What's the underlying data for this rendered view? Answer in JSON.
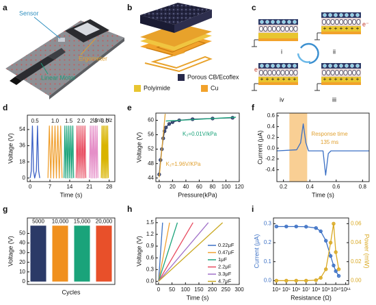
{
  "panel_labels": [
    "a",
    "b",
    "c",
    "d",
    "e",
    "f",
    "g",
    "h",
    "i"
  ],
  "panel_a": {
    "labels": [
      "Sensor",
      "Ergometer",
      "Linear Motor"
    ]
  },
  "panel_b": {
    "legend": [
      "Porous CB/Ecoflex",
      "Polyimide",
      "Cu"
    ]
  },
  "panel_c": {
    "states": [
      "i",
      "ii",
      "iii",
      "iv"
    ],
    "electron": "e⁻"
  },
  "chart_data": [
    {
      "type": "line",
      "xlabel": "Time (s)",
      "ylabel": "Voltage (V)",
      "legend": "above",
      "annotations": [
        {
          "text": "Unit: Hz",
          "color": "#222"
        }
      ],
      "xlim": [
        -1,
        30
      ],
      "ylim": [
        -4,
        70
      ],
      "xticks": [
        0,
        7,
        14,
        21,
        28
      ],
      "yticks": [
        0,
        18,
        36,
        54
      ],
      "series": [
        {
          "name": "0.5",
          "color": "#3a5fc4",
          "x": [
            0,
            0.4,
            0.8,
            1.2,
            1.6,
            2.2,
            2.6,
            3.0,
            3.4
          ],
          "values": [
            0,
            8,
            58,
            8,
            0,
            8,
            58,
            8,
            0
          ]
        },
        {
          "name": "1.0",
          "color": "#f0a030",
          "x": [
            6.3,
            6.8,
            7.3,
            7.8,
            8.3,
            8.8,
            9.3,
            9.8,
            10.3,
            10.8,
            11.3
          ],
          "values": [
            0,
            58,
            0,
            58,
            0,
            58,
            0,
            58,
            0,
            58,
            0
          ]
        },
        {
          "name": "1.5",
          "color": "#1aa37a",
          "x": [
            12,
            12.3,
            12.65,
            13,
            13.35,
            13.7,
            14.05,
            14.4,
            14.75,
            15.1,
            15.4
          ],
          "values": [
            0,
            58,
            0,
            58,
            0,
            58,
            0,
            58,
            0,
            58,
            0
          ]
        },
        {
          "name": "2.0",
          "color": "#e84a5f",
          "x": [
            16.3,
            16.6,
            16.95,
            17.3,
            17.65,
            18,
            18.35,
            18.7,
            19.05,
            19.4,
            19.7
          ],
          "values": [
            0,
            58,
            0,
            58,
            0,
            58,
            0,
            58,
            0,
            58,
            0
          ]
        },
        {
          "name": "2.5",
          "color": "#e58fc8",
          "x": [
            21,
            21.3,
            21.6,
            21.9,
            22.2,
            22.5,
            22.8,
            23.1,
            23.4,
            23.7,
            24
          ],
          "values": [
            0,
            58,
            0,
            58,
            0,
            58,
            0,
            58,
            0,
            58,
            0
          ]
        },
        {
          "name": "3.0",
          "color": "#d9b400",
          "x": [
            25.2,
            25.45,
            25.7,
            25.95,
            26.2,
            26.45,
            26.7,
            26.95,
            27.2,
            27.45,
            27.7
          ],
          "values": [
            0,
            58,
            0,
            58,
            0,
            58,
            0,
            58,
            0,
            58,
            0
          ]
        }
      ]
    },
    {
      "type": "line",
      "xlabel": "Pressure(kPa)",
      "ylabel": "Voltage (V)",
      "annotations": [
        {
          "text": "K₂=0.01V/kPa",
          "color": "#1aa37a"
        },
        {
          "text": "K₁=1.96V/KPa",
          "color": "#e0a030"
        }
      ],
      "xlim": [
        -5,
        120
      ],
      "ylim": [
        43,
        62
      ],
      "xticks": [
        0,
        20,
        40,
        60,
        80,
        100,
        120
      ],
      "yticks": [
        44,
        48,
        52,
        56,
        60
      ],
      "series": [
        {
          "color": "#2b3a67",
          "markers": true,
          "x": [
            0,
            2,
            4,
            6,
            8,
            10,
            15,
            20,
            30,
            50,
            80,
            110
          ],
          "values": [
            45,
            49,
            52,
            55,
            57,
            58,
            59,
            59.5,
            60,
            60.3,
            60.5,
            60.7
          ]
        },
        {
          "color": "#e0a030",
          "x": [
            0,
            9
          ],
          "values": [
            44.2,
            61.8
          ]
        },
        {
          "color": "#1aa37a",
          "x": [
            10,
            115
          ],
          "values": [
            59.8,
            60.85
          ]
        }
      ]
    },
    {
      "type": "line",
      "xlabel": "Time (s)",
      "ylabel": "Current (μA)",
      "annotations": [
        {
          "text": "Response time",
          "color": "#e0a030"
        },
        {
          "text": "135 ms",
          "color": "#e0a030"
        }
      ],
      "highlight": {
        "range": [
          0.245,
          0.38
        ],
        "color": "#f9cf94"
      },
      "xlim": [
        0.15,
        0.85
      ],
      "ylim": [
        -0.62,
        0.65
      ],
      "xticks": [
        0.2,
        0.4,
        0.6,
        0.8
      ],
      "yticks": [
        -0.4,
        -0.2,
        {
          "value": 0,
          "label": "0.0"
        },
        0.2,
        0.4,
        0.6
      ],
      "series": [
        {
          "color": "#3a6fc4",
          "x": [
            0.15,
            0.3,
            0.33,
            0.35,
            0.37,
            0.39,
            0.5,
            0.52,
            0.54,
            0.56,
            0.85
          ],
          "values": [
            -0.05,
            -0.03,
            0.1,
            0.45,
            0.1,
            -0.05,
            -0.05,
            -0.5,
            -0.1,
            -0.05,
            -0.05
          ]
        }
      ]
    },
    {
      "type": "bar",
      "xlabel": "Cycles",
      "ylabel": "Voltage (V)",
      "categories": [
        "5000",
        "10,000",
        "15,000",
        "20,000"
      ],
      "values": [
        58,
        58,
        58,
        58
      ],
      "colors": [
        "#2b3a67",
        "#f0901e",
        "#1aa37a",
        "#e8502a"
      ],
      "ylim": [
        -3,
        66
      ],
      "yticks": [
        0,
        10,
        20,
        30,
        40,
        50
      ]
    },
    {
      "type": "line",
      "xlabel": "Time (s)",
      "ylabel": "Voltage (V)",
      "legend": "right",
      "xlim": [
        -10,
        300
      ],
      "ylim": [
        -0.08,
        1.62
      ],
      "xticks": [
        0,
        50,
        100,
        150,
        200,
        250,
        300
      ],
      "yticks": [
        {
          "value": 0,
          "label": "0.0"
        },
        0.3,
        0.6,
        0.9,
        1.2,
        1.5
      ],
      "series": [
        {
          "name": "0.22μF",
          "color": "#3a6fc4",
          "x": [
            0,
            15
          ],
          "values": [
            0,
            1.5
          ]
        },
        {
          "name": "0.47μF",
          "color": "#f0a030",
          "x": [
            0,
            41
          ],
          "values": [
            0,
            1.5
          ]
        },
        {
          "name": "1μF",
          "color": "#1aa37a",
          "x": [
            0,
            70
          ],
          "values": [
            0,
            1.5
          ]
        },
        {
          "name": "2.2μF",
          "color": "#e84a5f",
          "x": [
            0,
            128
          ],
          "values": [
            0,
            1.5
          ]
        },
        {
          "name": "3.3μF",
          "color": "#a070c8",
          "x": [
            0,
            185
          ],
          "values": [
            0,
            1.5
          ]
        },
        {
          "name": "4.7μF",
          "color": "#c9a820",
          "x": [
            0,
            238
          ],
          "values": [
            0,
            1.5
          ]
        }
      ]
    },
    {
      "type": "line",
      "xlabel": "Resistance (Ω)",
      "ylabel": "Current (μA)",
      "y2label": "Power (mW)",
      "xscale": "log",
      "xlim": [
        5000,
        200000000000
      ],
      "ylim": [
        -0.02,
        0.33
      ],
      "y2lim": [
        -0.004,
        0.066
      ],
      "xticks": [
        {
          "value": 10000,
          "label": "10⁴"
        },
        {
          "value": 100000,
          "label": "10⁵"
        },
        {
          "value": 1000000,
          "label": "10⁶"
        },
        {
          "value": 10000000,
          "label": "10⁷"
        },
        {
          "value": 100000000,
          "label": "10⁸"
        },
        {
          "value": 1000000000,
          "label": "10⁹"
        },
        {
          "value": 10000000000,
          "label": "10¹⁰"
        },
        {
          "value": 100000000000,
          "label": "10¹¹"
        }
      ],
      "yticks": [
        {
          "value": 0,
          "label": "0.0"
        },
        0.1,
        0.2,
        0.3
      ],
      "y2ticks": [
        {
          "value": 0,
          "label": "0.00"
        },
        0.02,
        0.04,
        0.06
      ],
      "series": [
        {
          "color": "#3a6fc4",
          "markers": true,
          "x": [
            10000,
            100000,
            1000000,
            10000000,
            100000000,
            300000000,
            1000000000,
            3000000000,
            6000000000,
            10000000000,
            20000000000
          ],
          "values": [
            0.285,
            0.285,
            0.285,
            0.284,
            0.277,
            0.26,
            0.21,
            0.13,
            0.08,
            0.05,
            0.025
          ]
        },
        {
          "color": "#d9a820",
          "markers": true,
          "axis": "y2",
          "x": [
            10000,
            100000,
            1000000,
            10000000,
            100000000,
            300000000,
            1000000000,
            3000000000,
            6000000000,
            10000000000,
            20000000000
          ],
          "values": [
            0,
            0,
            0,
            0,
            0.0005,
            0.003,
            0.012,
            0.04,
            0.06,
            0.03,
            0.012
          ]
        }
      ]
    }
  ]
}
